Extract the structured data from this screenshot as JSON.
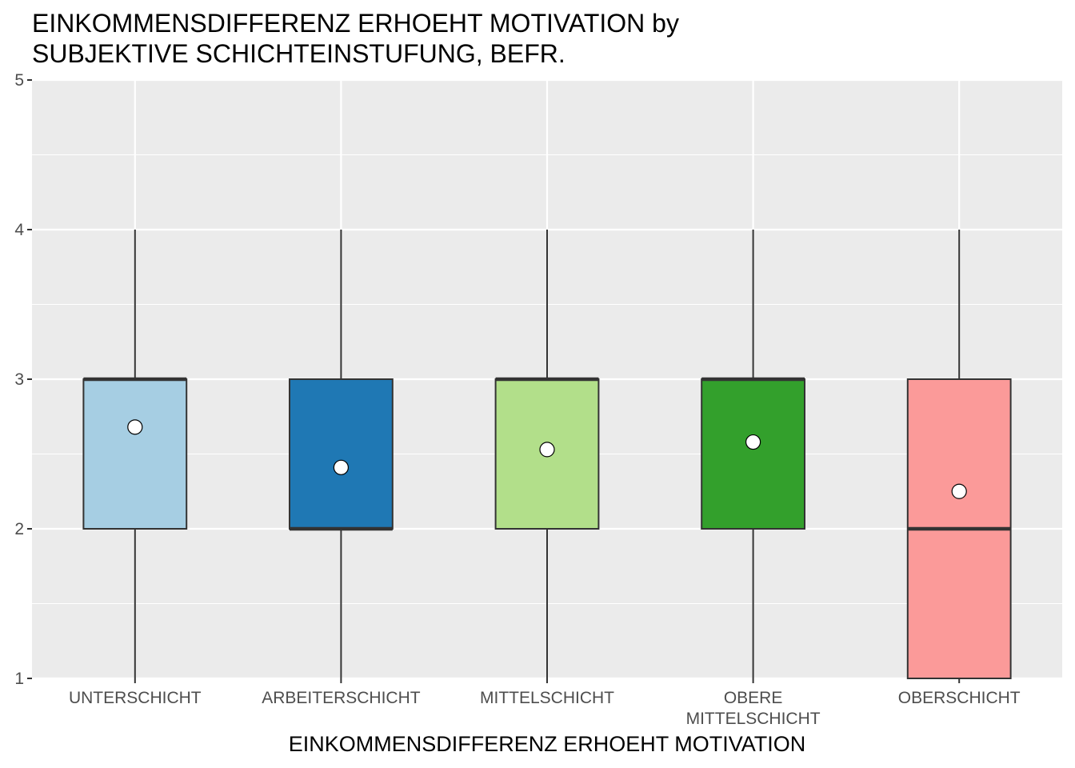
{
  "chart_data": {
    "type": "boxplot",
    "title_lines": [
      "EINKOMMENSDIFFERENZ ERHOEHT MOTIVATION by",
      "SUBJEKTIVE SCHICHTEINSTUFUNG, BEFR."
    ],
    "xlabel": "EINKOMMENSDIFFERENZ ERHOEHT MOTIVATION",
    "ylabel": "",
    "ylim": [
      1,
      5
    ],
    "y_ticks": [
      "1",
      "2",
      "3",
      "4",
      "5"
    ],
    "grid": true,
    "categories": [
      {
        "label_lines": [
          "UNTERSCHICHT"
        ],
        "min": 1,
        "q1": 2,
        "median": 3,
        "q3": 3,
        "max": 4,
        "mean": 2.68,
        "fill": "#A6CEE3"
      },
      {
        "label_lines": [
          "ARBEITERSCHICHT"
        ],
        "min": 1,
        "q1": 2,
        "median": 2,
        "q3": 3,
        "max": 4,
        "mean": 2.41,
        "fill": "#1F78B4"
      },
      {
        "label_lines": [
          "MITTELSCHICHT"
        ],
        "min": 1,
        "q1": 2,
        "median": 3,
        "q3": 3,
        "max": 4,
        "mean": 2.53,
        "fill": "#B2DF8A"
      },
      {
        "label_lines": [
          "OBERE",
          "MITTELSCHICHT"
        ],
        "min": 1,
        "q1": 2,
        "median": 3,
        "q3": 3,
        "max": 4,
        "mean": 2.58,
        "fill": "#33A02C"
      },
      {
        "label_lines": [
          "OBERSCHICHT"
        ],
        "min": 1,
        "q1": 1,
        "median": 2,
        "q3": 3,
        "max": 4,
        "mean": 2.25,
        "fill": "#FB9A99"
      }
    ],
    "colors": {
      "panel_background": "#EBEBEB",
      "grid_major": "#FFFFFF",
      "box_outline": "#333333",
      "mean_marker": "#FFFFFF"
    }
  }
}
